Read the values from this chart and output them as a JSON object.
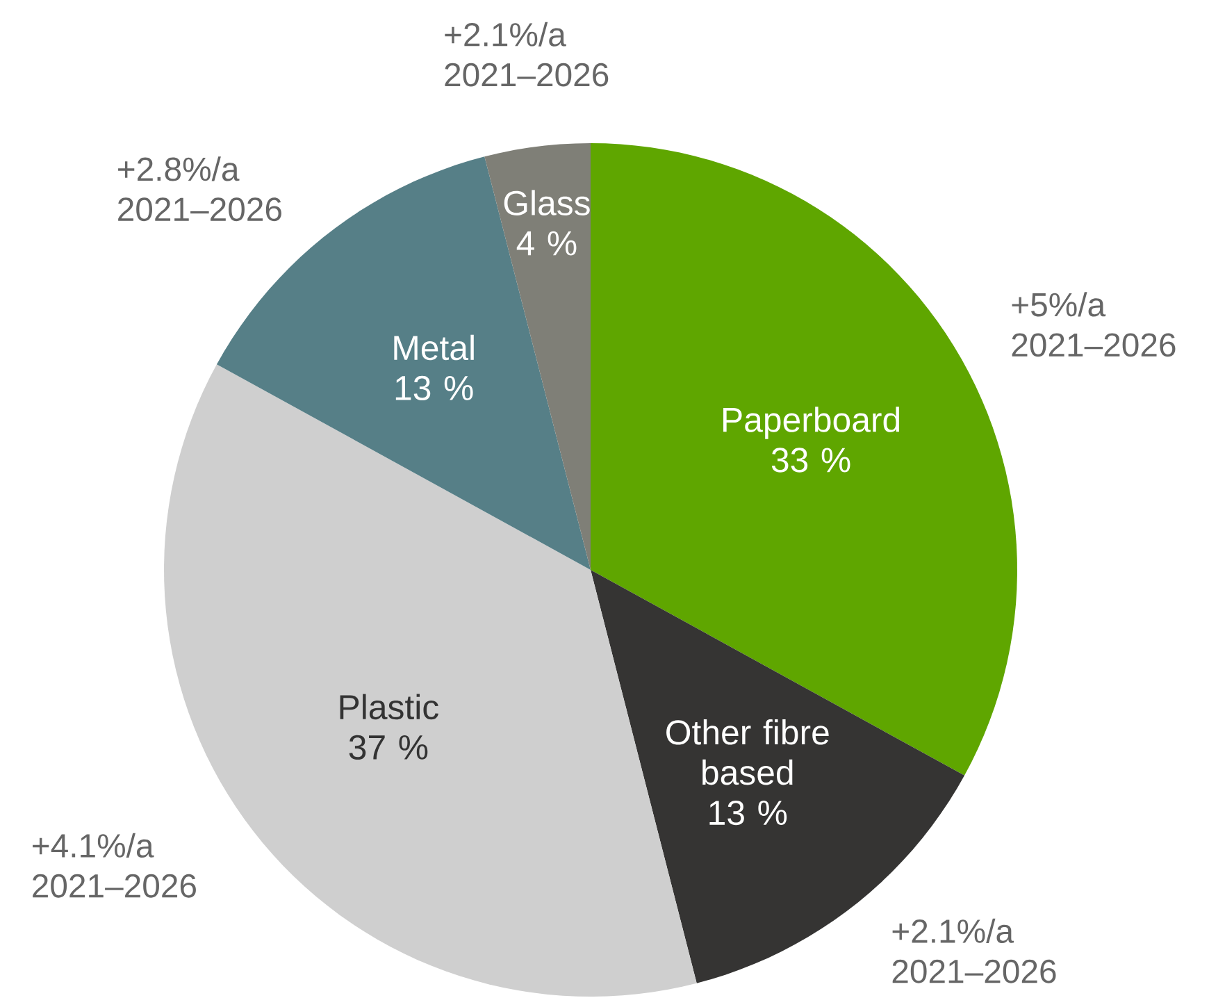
{
  "chart_data": {
    "type": "pie",
    "categories": [
      "Paperboard",
      "Other fibre based",
      "Plastic",
      "Metal",
      "Glass"
    ],
    "values": [
      33,
      13,
      37,
      13,
      4
    ],
    "value_labels": [
      "33 %",
      "13 %",
      "37 %",
      "13 %",
      "4 %"
    ],
    "colors": [
      "#5fa600",
      "#353433",
      "#cfcfcf",
      "#567f87",
      "#7f7f77"
    ],
    "annotations": [
      "+5%/a 2021–2026",
      "+2.1%/a 2021–2026",
      "+4.1%/a 2021–2026",
      "+2.8%/a 2021–2026",
      "+2.1%/a 2021–2026"
    ]
  }
}
